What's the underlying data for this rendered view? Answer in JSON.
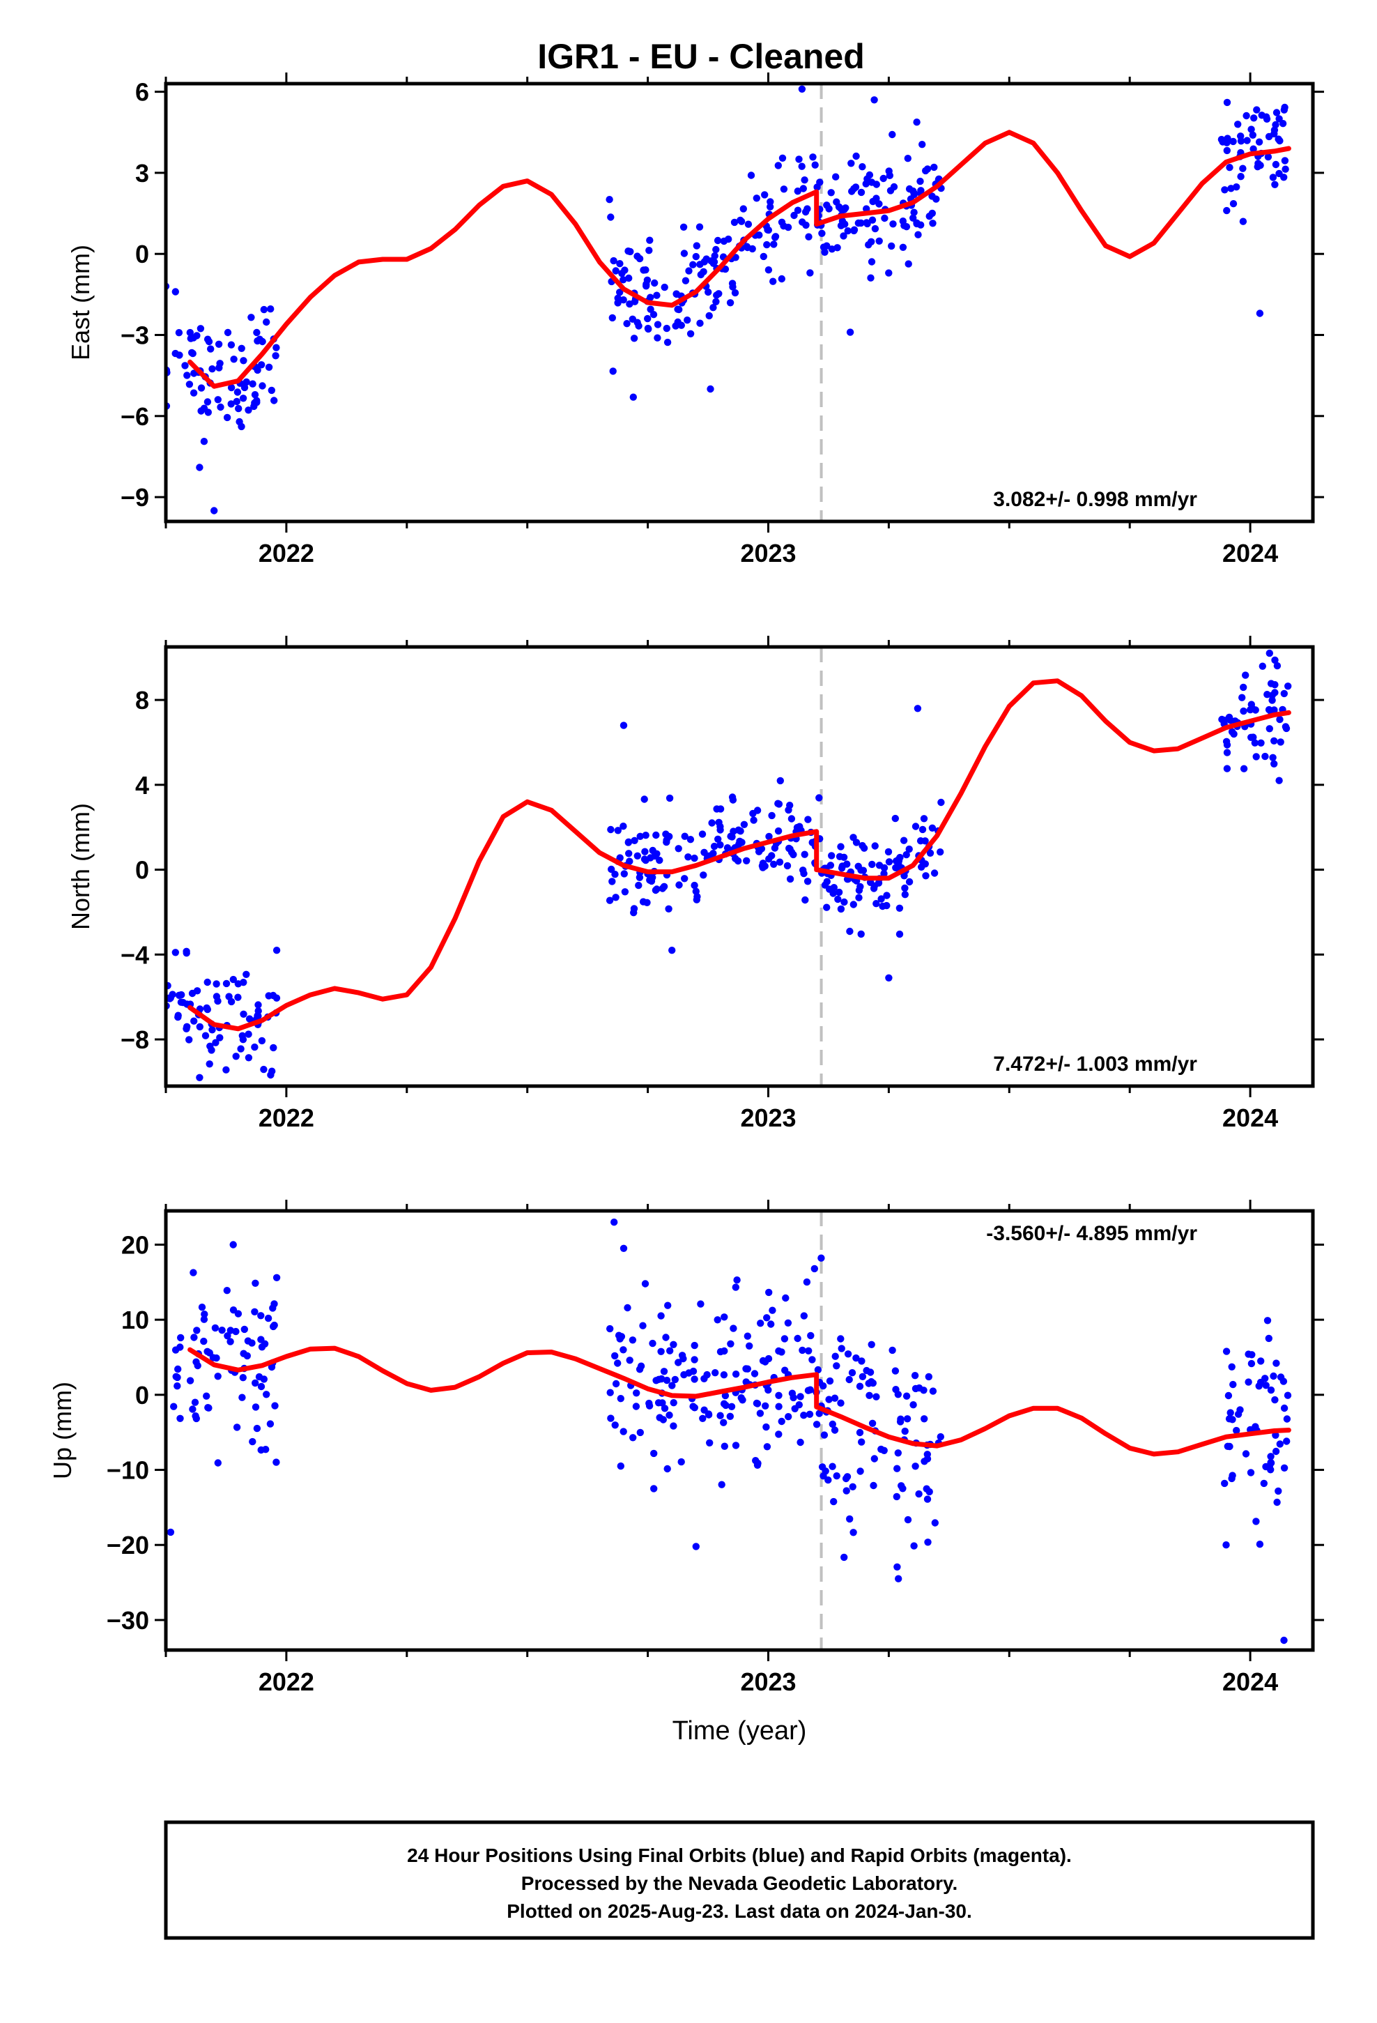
{
  "title": "IGR1  - EU - Cleaned",
  "footer": {
    "line1": "24 Hour Positions Using Final Orbits (blue) and Rapid Orbits (magenta).",
    "line2": "Processed by the Nevada Geodetic Laboratory.",
    "line3": "Plotted on 2025-Aug-23. Last data on 2024-Jan-30."
  },
  "colors": {
    "points": "#0000ff",
    "model": "#ff0000",
    "break_line": "#c0c0c0"
  },
  "chart_data": [
    {
      "type": "scatter",
      "component": "east",
      "ylabel": "East (mm)",
      "xlabel": "",
      "xlim": [
        2021.75,
        2024.13
      ],
      "ylim": [
        -9.9,
        6.3
      ],
      "yticks": [
        6,
        3,
        0,
        -3,
        -6,
        -9
      ],
      "ytick_labels": [
        "6",
        "3",
        "0",
        "−3",
        "−6",
        "−9"
      ],
      "xticks": [
        2022,
        2023,
        2024
      ],
      "xtick_labels": [
        "2022",
        "2023",
        "2024"
      ],
      "break_epoch": 2023.11,
      "rate_label": "3.082+/- 0.998 mm/yr",
      "model": {
        "name": "model fit",
        "x": [
          2021.8,
          2021.85,
          2021.9,
          2021.95,
          2022.0,
          2022.05,
          2022.1,
          2022.15,
          2022.2,
          2022.25,
          2022.3,
          2022.35,
          2022.4,
          2022.45,
          2022.5,
          2022.55,
          2022.6,
          2022.65,
          2022.7,
          2022.75,
          2022.8,
          2022.85,
          2022.9,
          2022.95,
          2023.0,
          2023.05,
          2023.1,
          2023.1,
          2023.15,
          2023.2,
          2023.25,
          2023.3,
          2023.35,
          2023.4,
          2023.45,
          2023.5,
          2023.55,
          2023.6,
          2023.65,
          2023.7,
          2023.75,
          2023.8,
          2023.85,
          2023.9,
          2023.95,
          2024.0,
          2024.05,
          2024.08
        ],
        "y": [
          -4.0,
          -4.9,
          -4.7,
          -3.7,
          -2.6,
          -1.6,
          -0.8,
          -0.3,
          -0.2,
          -0.2,
          0.2,
          0.9,
          1.8,
          2.5,
          2.7,
          2.2,
          1.1,
          -0.3,
          -1.3,
          -1.8,
          -1.9,
          -1.4,
          -0.5,
          0.5,
          1.3,
          1.9,
          2.3,
          1.1,
          1.4,
          1.5,
          1.6,
          1.9,
          2.5,
          3.3,
          4.1,
          4.5,
          4.1,
          3.0,
          1.6,
          0.3,
          -0.1,
          0.4,
          1.5,
          2.6,
          3.4,
          3.7,
          3.8,
          3.9
        ]
      },
      "points": {
        "name": "Final Orbits",
        "segments": [
          {
            "x0": 2021.75,
            "x1": 2021.98,
            "n": 80
          },
          {
            "x0": 2022.67,
            "x1": 2023.36,
            "n": 260
          },
          {
            "x0": 2023.94,
            "x1": 2024.08,
            "n": 55
          }
        ],
        "scatter_sd": 1.0,
        "outliers": [
          {
            "x": 2021.75,
            "y": -1.2
          },
          {
            "x": 2021.77,
            "y": -1.4
          },
          {
            "x": 2021.82,
            "y": -7.9
          },
          {
            "x": 2021.85,
            "y": -9.5
          },
          {
            "x": 2022.72,
            "y": -5.3
          },
          {
            "x": 2023.07,
            "y": 6.1
          },
          {
            "x": 2023.22,
            "y": 5.7
          },
          {
            "x": 2023.17,
            "y": -2.9
          },
          {
            "x": 2024.02,
            "y": -2.2
          },
          {
            "x": 2024.06,
            "y": 5.0
          },
          {
            "x": 2022.88,
            "y": -5.0
          }
        ]
      }
    },
    {
      "type": "scatter",
      "component": "north",
      "ylabel": "North (mm)",
      "xlabel": "",
      "xlim": [
        2021.75,
        2024.13
      ],
      "ylim": [
        -10.2,
        10.5
      ],
      "yticks": [
        8,
        4,
        0,
        -4,
        -8
      ],
      "ytick_labels": [
        "8",
        "4",
        "0",
        "−4",
        "−8"
      ],
      "xticks": [
        2022,
        2023,
        2024
      ],
      "xtick_labels": [
        "2022",
        "2023",
        "2024"
      ],
      "break_epoch": 2023.11,
      "rate_label": "7.472+/- 1.003 mm/yr",
      "model": {
        "name": "model fit",
        "x": [
          2021.8,
          2021.85,
          2021.9,
          2021.95,
          2022.0,
          2022.05,
          2022.1,
          2022.15,
          2022.2,
          2022.25,
          2022.3,
          2022.35,
          2022.4,
          2022.45,
          2022.5,
          2022.55,
          2022.6,
          2022.65,
          2022.7,
          2022.75,
          2022.8,
          2022.85,
          2022.9,
          2022.95,
          2023.0,
          2023.05,
          2023.1,
          2023.1,
          2023.15,
          2023.2,
          2023.25,
          2023.3,
          2023.35,
          2023.4,
          2023.45,
          2023.5,
          2023.55,
          2023.6,
          2023.65,
          2023.7,
          2023.75,
          2023.8,
          2023.85,
          2023.9,
          2023.95,
          2024.0,
          2024.05,
          2024.08
        ],
        "y": [
          -6.5,
          -7.3,
          -7.5,
          -7.1,
          -6.4,
          -5.9,
          -5.6,
          -5.8,
          -6.1,
          -5.9,
          -4.6,
          -2.3,
          0.4,
          2.5,
          3.2,
          2.8,
          1.8,
          0.8,
          0.2,
          -0.1,
          -0.1,
          0.2,
          0.6,
          1.0,
          1.3,
          1.6,
          1.8,
          0.0,
          -0.2,
          -0.4,
          -0.4,
          0.2,
          1.6,
          3.6,
          5.8,
          7.7,
          8.8,
          8.9,
          8.2,
          7.0,
          6.0,
          5.6,
          5.7,
          6.2,
          6.7,
          7.0,
          7.3,
          7.4
        ]
      },
      "points": {
        "name": "Final Orbits",
        "segments": [
          {
            "x0": 2021.75,
            "x1": 2021.98,
            "n": 80
          },
          {
            "x0": 2022.67,
            "x1": 2023.36,
            "n": 260
          },
          {
            "x0": 2023.94,
            "x1": 2024.08,
            "n": 55
          }
        ],
        "scatter_sd": 1.1,
        "outliers": [
          {
            "x": 2021.77,
            "y": -3.9
          },
          {
            "x": 2021.82,
            "y": -9.8
          },
          {
            "x": 2021.98,
            "y": -3.8
          },
          {
            "x": 2022.7,
            "y": 6.8
          },
          {
            "x": 2022.8,
            "y": -3.8
          },
          {
            "x": 2023.31,
            "y": 7.6
          },
          {
            "x": 2023.25,
            "y": -5.1
          },
          {
            "x": 2024.04,
            "y": 10.2
          },
          {
            "x": 2024.06,
            "y": 4.2
          },
          {
            "x": 2021.97,
            "y": -9.5
          }
        ]
      }
    },
    {
      "type": "scatter",
      "component": "up",
      "ylabel": "Up (mm)",
      "xlabel": "Time (year)",
      "xlim": [
        2021.75,
        2024.13
      ],
      "ylim": [
        -34.0,
        24.5
      ],
      "yticks": [
        20,
        10,
        0,
        -10,
        -20,
        -30
      ],
      "ytick_labels": [
        "20",
        "10",
        "0",
        "−10",
        "−20",
        "−30"
      ],
      "xticks": [
        2022,
        2023,
        2024
      ],
      "xtick_labels": [
        "2022",
        "2023",
        "2024"
      ],
      "break_epoch": 2023.11,
      "rate_label": "-3.560+/- 4.895 mm/yr",
      "model": {
        "name": "model fit",
        "x": [
          2021.8,
          2021.85,
          2021.9,
          2021.95,
          2022.0,
          2022.05,
          2022.1,
          2022.15,
          2022.2,
          2022.25,
          2022.3,
          2022.35,
          2022.4,
          2022.45,
          2022.5,
          2022.55,
          2022.6,
          2022.65,
          2022.7,
          2022.75,
          2022.8,
          2022.85,
          2022.9,
          2022.95,
          2023.0,
          2023.05,
          2023.1,
          2023.1,
          2023.15,
          2023.2,
          2023.25,
          2023.3,
          2023.35,
          2023.4,
          2023.45,
          2023.5,
          2023.55,
          2023.6,
          2023.65,
          2023.7,
          2023.75,
          2023.8,
          2023.85,
          2023.9,
          2023.95,
          2024.0,
          2024.05,
          2024.08
        ],
        "y": [
          6.0,
          4.0,
          3.3,
          3.9,
          5.1,
          6.1,
          6.2,
          5.1,
          3.2,
          1.5,
          0.6,
          1.0,
          2.4,
          4.2,
          5.6,
          5.7,
          4.8,
          3.5,
          2.2,
          0.8,
          -0.1,
          -0.2,
          0.4,
          1.0,
          1.7,
          2.3,
          2.7,
          -1.6,
          -2.9,
          -4.3,
          -5.6,
          -6.5,
          -6.8,
          -6.0,
          -4.5,
          -2.8,
          -1.8,
          -1.8,
          -3.1,
          -5.2,
          -7.1,
          -7.9,
          -7.6,
          -6.6,
          -5.6,
          -5.2,
          -4.8,
          -4.7
        ]
      },
      "points": {
        "name": "Final Orbits",
        "segments": [
          {
            "x0": 2021.75,
            "x1": 2021.98,
            "n": 80
          },
          {
            "x0": 2022.67,
            "x1": 2023.36,
            "n": 260
          },
          {
            "x0": 2023.94,
            "x1": 2024.08,
            "n": 55
          }
        ],
        "scatter_sd": 6.5,
        "outliers": [
          {
            "x": 2022.68,
            "y": 23.0
          },
          {
            "x": 2022.7,
            "y": 19.5
          },
          {
            "x": 2021.76,
            "y": -18.3
          },
          {
            "x": 2023.27,
            "y": -24.5
          },
          {
            "x": 2024.07,
            "y": -32.7
          },
          {
            "x": 2021.98,
            "y": 15.6
          },
          {
            "x": 2022.85,
            "y": -20.2
          },
          {
            "x": 2023.95,
            "y": -20.0
          },
          {
            "x": 2024.02,
            "y": -19.9
          }
        ]
      }
    }
  ]
}
